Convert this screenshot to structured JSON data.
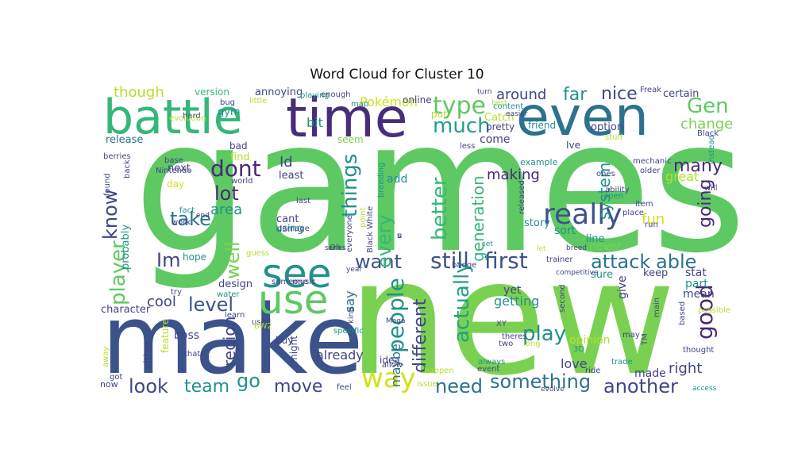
{
  "title": "Word Cloud for Cluster 10",
  "palette": {
    "green": "#5ec962",
    "lime": "#7ad151",
    "yellowgreen": "#b5de2b",
    "yellow": "#d2e21b",
    "teal": "#21918c",
    "blue": "#2c728e",
    "slate": "#3b528b",
    "indigo": "#414487",
    "purple": "#472d7b",
    "darkpurple": "#482878",
    "seagreen": "#35b779",
    "aqua": "#1fa187"
  },
  "words": [
    {
      "text": "games",
      "color": "#5ec962"
    },
    {
      "text": "new",
      "color": "#7ad151"
    },
    {
      "text": "make",
      "color": "#3b528b"
    },
    {
      "text": "time",
      "color": "#472d7b"
    },
    {
      "text": "even",
      "color": "#2c728e"
    },
    {
      "text": "battle",
      "color": "#35b779"
    },
    {
      "text": "see",
      "color": "#21918c"
    },
    {
      "text": "use",
      "color": "#5ec962"
    },
    {
      "text": "way",
      "color": "#d2e21b"
    },
    {
      "text": "really",
      "color": "#3b528b"
    },
    {
      "text": "type",
      "color": "#5ec962"
    },
    {
      "text": "much",
      "color": "#1fa187"
    },
    {
      "text": "Gen",
      "color": "#5ec962"
    },
    {
      "text": "still",
      "color": "#3b528b"
    },
    {
      "text": "first",
      "color": "#3b528b"
    },
    {
      "text": "attack",
      "color": "#2c728e"
    },
    {
      "text": "able",
      "color": "#2c728e"
    },
    {
      "text": "want",
      "color": "#3b528b"
    },
    {
      "text": "player",
      "color": "#5ec962"
    },
    {
      "text": "dont",
      "color": "#482878"
    },
    {
      "text": "level",
      "color": "#3b528b"
    },
    {
      "text": "take",
      "color": "#2c728e"
    },
    {
      "text": "lot",
      "color": "#482878"
    },
    {
      "text": "know",
      "color": "#414487"
    },
    {
      "text": "well",
      "color": "#7ad151"
    },
    {
      "text": "Im",
      "color": "#414487"
    },
    {
      "text": "things",
      "color": "#21918c"
    },
    {
      "text": "every",
      "color": "#35b779"
    },
    {
      "text": "people",
      "color": "#21918c"
    },
    {
      "text": "better",
      "color": "#35b779"
    },
    {
      "text": "actually",
      "color": "#1fa187"
    },
    {
      "text": "different",
      "color": "#414487"
    },
    {
      "text": "need",
      "color": "#2c728e"
    },
    {
      "text": "something",
      "color": "#2c728e"
    },
    {
      "text": "another",
      "color": "#414487"
    },
    {
      "text": "look",
      "color": "#414487"
    },
    {
      "text": "team",
      "color": "#21918c"
    },
    {
      "text": "go",
      "color": "#21918c"
    },
    {
      "text": "move",
      "color": "#414487"
    },
    {
      "text": "play",
      "color": "#21918c"
    },
    {
      "text": "good",
      "color": "#482878"
    },
    {
      "text": "right",
      "color": "#414487"
    },
    {
      "text": "going",
      "color": "#482878"
    },
    {
      "text": "many",
      "color": "#482878"
    },
    {
      "text": "fun",
      "color": "#d2e21b"
    },
    {
      "text": "system",
      "color": "#21918c"
    },
    {
      "text": "nice",
      "color": "#414487"
    },
    {
      "text": "far",
      "color": "#21918c"
    },
    {
      "text": "around",
      "color": "#414487"
    },
    {
      "text": "though",
      "color": "#b5de2b"
    },
    {
      "text": "change",
      "color": "#7ad151"
    },
    {
      "text": "area",
      "color": "#21918c"
    },
    {
      "text": "cool",
      "color": "#414487"
    },
    {
      "text": "region",
      "color": "#414487"
    },
    {
      "text": "generation",
      "color": "#35b779"
    },
    {
      "text": "making",
      "color": "#482878"
    },
    {
      "text": "Pokémon",
      "color": "#d2e21b"
    },
    {
      "text": "bit",
      "color": "#21918c"
    },
    {
      "text": "Id",
      "color": "#414487"
    },
    {
      "text": "say",
      "color": "#2c728e"
    },
    {
      "text": "maybe",
      "color": "#2c728e"
    },
    {
      "text": "already",
      "color": "#414487"
    },
    {
      "text": "getting",
      "color": "#21918c"
    },
    {
      "text": "love",
      "color": "#414487"
    },
    {
      "text": "made",
      "color": "#414487"
    },
    {
      "text": "yet",
      "color": "#414487"
    },
    {
      "text": "mean",
      "color": "#414487"
    },
    {
      "text": "part",
      "color": "#21918c"
    },
    {
      "text": "stat",
      "color": "#414487"
    },
    {
      "text": "keep",
      "color": "#414487"
    },
    {
      "text": "sure",
      "color": "#21918c"
    },
    {
      "text": "give",
      "color": "#414487"
    },
    {
      "text": "never",
      "color": "#7ad151"
    },
    {
      "text": "line",
      "color": "#21918c"
    },
    {
      "text": "sort",
      "color": "#21918c"
    },
    {
      "text": "story",
      "color": "#21918c"
    },
    {
      "text": "certain",
      "color": "#414487"
    },
    {
      "text": "great",
      "color": "#b5de2b"
    },
    {
      "text": "come",
      "color": "#414487"
    },
    {
      "text": "Catch",
      "color": "#b5de2b"
    },
    {
      "text": "annoying",
      "color": "#414487"
    },
    {
      "text": "version",
      "color": "#35b779"
    },
    {
      "text": "gym",
      "color": "#21918c"
    },
    {
      "text": "release",
      "color": "#2c728e"
    },
    {
      "text": "bad",
      "color": "#414487"
    },
    {
      "text": "find",
      "color": "#b5de2b"
    },
    {
      "text": "next",
      "color": "#414487"
    },
    {
      "text": "day",
      "color": "#d2e21b"
    },
    {
      "text": "cant",
      "color": "#414487"
    },
    {
      "text": "using",
      "color": "#21918c"
    },
    {
      "text": "least",
      "color": "#414487"
    },
    {
      "text": "add",
      "color": "#21918c"
    },
    {
      "text": "probably",
      "color": "#21918c"
    },
    {
      "text": "hope",
      "color": "#21918c"
    },
    {
      "text": "design",
      "color": "#414487"
    },
    {
      "text": "character",
      "color": "#414487"
    },
    {
      "text": "boss",
      "color": "#414487"
    },
    {
      "text": "feature",
      "color": "#b5de2b"
    },
    {
      "text": "either",
      "color": "#414487"
    },
    {
      "text": "might",
      "color": "#414487"
    },
    {
      "text": "idea",
      "color": "#414487"
    },
    {
      "text": "seem",
      "color": "#7ad151"
    },
    {
      "text": "pretty",
      "color": "#414487"
    },
    {
      "text": "friend",
      "color": "#21918c"
    },
    {
      "text": "Ive",
      "color": "#414487"
    },
    {
      "text": "example",
      "color": "#21918c"
    },
    {
      "text": "Freak",
      "color": "#414487"
    },
    {
      "text": "Black",
      "color": "#414487"
    },
    {
      "text": "bug",
      "color": "#414487"
    },
    {
      "text": "playing",
      "color": "#21918c"
    },
    {
      "text": "map",
      "color": "#21918c"
    },
    {
      "text": "online",
      "color": "#414487"
    },
    {
      "text": "put",
      "color": "#b5de2b"
    },
    {
      "text": "hard",
      "color": "#414487"
    },
    {
      "text": "berries",
      "color": "#414487"
    },
    {
      "text": "evolution",
      "color": "#b5de2b"
    },
    {
      "text": "base",
      "color": "#414487"
    },
    {
      "text": "Nintendo",
      "color": "#414487"
    },
    {
      "text": "world",
      "color": "#414487"
    },
    {
      "text": "back",
      "color": "#414487"
    },
    {
      "text": "found",
      "color": "#414487"
    },
    {
      "text": "fact",
      "color": "#21918c"
    },
    {
      "text": "end",
      "color": "#414487"
    },
    {
      "text": "damage",
      "color": "#414487"
    },
    {
      "text": "last",
      "color": "#414487"
    },
    {
      "text": "work",
      "color": "#414487"
    },
    {
      "text": "guess",
      "color": "#b5de2b"
    },
    {
      "text": "try",
      "color": "#414487"
    },
    {
      "text": "water",
      "color": "#21918c"
    },
    {
      "text": "learn",
      "color": "#414487"
    },
    {
      "text": "used",
      "color": "#414487"
    },
    {
      "text": "buy",
      "color": "#414487"
    },
    {
      "text": "BW2",
      "color": "#b5de2b"
    },
    {
      "text": "thats",
      "color": "#414487"
    },
    {
      "text": "got",
      "color": "#414487"
    },
    {
      "text": "now",
      "color": "#414487"
    },
    {
      "text": "away",
      "color": "#b5de2b"
    },
    {
      "text": "specific",
      "color": "#21918c"
    },
    {
      "text": "kind",
      "color": "#414487"
    },
    {
      "text": "Mega",
      "color": "#414487"
    },
    {
      "text": "allow",
      "color": "#414487"
    },
    {
      "text": "happen",
      "color": "#b5de2b"
    },
    {
      "text": "issue",
      "color": "#b5de2b"
    },
    {
      "text": "feel",
      "color": "#414487"
    },
    {
      "text": "always",
      "color": "#21918c"
    },
    {
      "text": "event",
      "color": "#414487"
    },
    {
      "text": "evolve",
      "color": "#414487"
    },
    {
      "text": "access",
      "color": "#21918c"
    },
    {
      "text": "ride",
      "color": "#414487"
    },
    {
      "text": "trade",
      "color": "#21918c"
    },
    {
      "text": "theres",
      "color": "#414487"
    },
    {
      "text": "two",
      "color": "#414487"
    },
    {
      "text": "long",
      "color": "#b5de2b"
    },
    {
      "text": "opinion",
      "color": "#b5de2b"
    },
    {
      "text": "3D",
      "color": "#21918c"
    },
    {
      "text": "XY",
      "color": "#414487"
    },
    {
      "text": "badge",
      "color": "#414487"
    },
    {
      "text": "competitive",
      "color": "#414487"
    },
    {
      "text": "let",
      "color": "#b5de2b"
    },
    {
      "text": "breed",
      "color": "#414487"
    },
    {
      "text": "trainer",
      "color": "#414487"
    },
    {
      "text": "set",
      "color": "#21918c"
    },
    {
      "text": "Oh",
      "color": "#414487"
    },
    {
      "text": "series",
      "color": "#414487"
    },
    {
      "text": "everyone",
      "color": "#414487"
    },
    {
      "text": "point",
      "color": "#b5de2b"
    },
    {
      "text": "Black White",
      "color": "#414487"
    },
    {
      "text": "breeding",
      "color": "#21918c"
    },
    {
      "text": "released",
      "color": "#414487"
    },
    {
      "text": "place",
      "color": "#414487"
    },
    {
      "text": "run",
      "color": "#414487"
    },
    {
      "text": "item",
      "color": "#414487"
    },
    {
      "text": "ability",
      "color": "#414487"
    },
    {
      "text": "open",
      "color": "#21918c"
    },
    {
      "text": "ones",
      "color": "#414487"
    },
    {
      "text": "mechanic",
      "color": "#414487"
    },
    {
      "text": "older",
      "color": "#414487"
    },
    {
      "text": "will",
      "color": "#414487"
    },
    {
      "text": "instead",
      "color": "#21918c"
    },
    {
      "text": "stuff",
      "color": "#b5de2b"
    },
    {
      "text": "less",
      "color": "#414487"
    },
    {
      "text": "easier",
      "color": "#414487"
    },
    {
      "text": "turn",
      "color": "#414487"
    },
    {
      "text": "content",
      "color": "#21918c"
    },
    {
      "text": "best",
      "color": "#b5de2b"
    },
    {
      "text": "little",
      "color": "#b5de2b"
    },
    {
      "text": "enough",
      "color": "#414487"
    },
    {
      "text": "someone",
      "color": "#414487"
    },
    {
      "text": "music",
      "color": "#414487"
    },
    {
      "text": "year",
      "color": "#414487"
    },
    {
      "text": "second",
      "color": "#414487"
    },
    {
      "text": "may",
      "color": "#414487"
    },
    {
      "text": "TM",
      "color": "#414487"
    },
    {
      "text": "main",
      "color": "#414487"
    },
    {
      "text": "based",
      "color": "#414487"
    },
    {
      "text": "possible",
      "color": "#b5de2b"
    },
    {
      "text": "thought",
      "color": "#414487"
    },
    {
      "text": "option",
      "color": "#414487"
    },
    {
      "text": "s",
      "color": "#414487"
    },
    {
      "text": "u",
      "color": "#414487"
    }
  ]
}
